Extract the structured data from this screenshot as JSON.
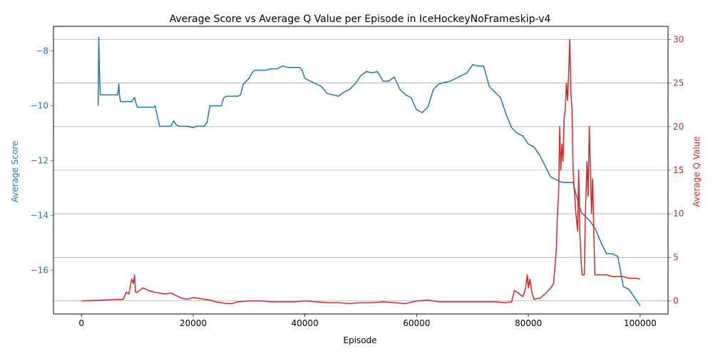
{
  "chart_data": {
    "type": "line",
    "title": "Average Score vs Average Q Value per Episode in IceHockeyNoFrameskip-v4",
    "xlabel": "Episode",
    "ylabel_left": "Average Score",
    "ylabel_right": "Average Q Value",
    "xlim": [
      -5000,
      105000
    ],
    "ylim_left": [
      -17.6,
      -7.1
    ],
    "ylim_right": [
      -1.5,
      31.5
    ],
    "x_ticks": [
      0,
      20000,
      40000,
      60000,
      80000,
      100000
    ],
    "x_tick_labels": [
      "0",
      "20000",
      "40000",
      "60000",
      "80000",
      "100000"
    ],
    "left_ticks": [
      -16,
      -14,
      -12,
      -10,
      -8
    ],
    "left_tick_labels": [
      "−16",
      "−14",
      "−12",
      "−10",
      "−8"
    ],
    "right_ticks": [
      0,
      5,
      10,
      15,
      20,
      25,
      30
    ],
    "right_tick_labels": [
      "0",
      "5",
      "10",
      "15",
      "20",
      "25",
      "30"
    ],
    "grid": "horizontal lines at right-axis ticks",
    "colors": {
      "score": "#1f77b4",
      "q": "#d62728",
      "grid": "#b0b0b0",
      "axis": "#000000"
    },
    "series": [
      {
        "axis": "left",
        "x": [
          3000,
          3100,
          3200,
          3300,
          3400,
          3500,
          3700,
          4000,
          5000,
          6000,
          6500,
          6700,
          6800,
          7000,
          8000,
          9000,
          9500,
          9700,
          10000,
          11000,
          12000,
          13000,
          13200,
          13500,
          14000,
          15000,
          16000,
          16500,
          17000,
          17500,
          18000,
          19000,
          20000,
          20500,
          21000,
          22000,
          22500,
          23000,
          24000,
          25000,
          25500,
          26000,
          27000,
          28000,
          28500,
          29000,
          30000,
          30500,
          31000,
          32000,
          33000,
          34000,
          35000,
          36000,
          37000,
          38000,
          39000,
          39500,
          40000,
          41000,
          42000,
          43000,
          44000,
          45000,
          46000,
          47000,
          48000,
          49000,
          50000,
          51000,
          52000,
          53000,
          54000,
          55000,
          56000,
          57000,
          58000,
          59000,
          60000,
          61000,
          62000,
          63000,
          64000,
          65000,
          66000,
          67000,
          68000,
          69000,
          70000,
          71000,
          72000,
          73000,
          74000,
          75000,
          76000,
          77000,
          78000,
          79000,
          80000,
          81000,
          82000,
          83000,
          84000,
          85000,
          86000,
          87000,
          88000,
          89000,
          89500,
          90000,
          91000,
          92000,
          93000,
          94000,
          95000,
          96000,
          97000,
          98000,
          99000,
          100000
        ],
        "y": [
          -10.0,
          -7.5,
          -8.5,
          -9.2,
          -9.6,
          -9.6,
          -9.6,
          -9.6,
          -9.6,
          -9.6,
          -9.6,
          -9.2,
          -9.6,
          -9.85,
          -9.85,
          -9.85,
          -9.7,
          -9.85,
          -10.05,
          -10.05,
          -10.05,
          -10.05,
          -10.0,
          -10.3,
          -10.75,
          -10.75,
          -10.75,
          -10.55,
          -10.7,
          -10.75,
          -10.75,
          -10.75,
          -10.8,
          -10.75,
          -10.75,
          -10.75,
          -10.6,
          -10.0,
          -10.0,
          -10.0,
          -9.7,
          -9.65,
          -9.65,
          -9.65,
          -9.6,
          -9.2,
          -9.0,
          -8.8,
          -8.7,
          -8.7,
          -8.7,
          -8.65,
          -8.65,
          -8.55,
          -8.6,
          -8.6,
          -8.6,
          -8.7,
          -9.0,
          -9.1,
          -9.2,
          -9.3,
          -9.55,
          -9.6,
          -9.65,
          -9.5,
          -9.4,
          -9.2,
          -8.9,
          -8.75,
          -8.8,
          -8.75,
          -9.1,
          -9.1,
          -8.95,
          -9.4,
          -9.6,
          -9.7,
          -10.15,
          -10.25,
          -10.05,
          -9.4,
          -9.2,
          -9.15,
          -9.1,
          -9.0,
          -8.9,
          -8.8,
          -8.5,
          -8.55,
          -8.55,
          -9.3,
          -9.5,
          -9.7,
          -10.3,
          -10.8,
          -11.0,
          -11.1,
          -11.4,
          -11.5,
          -11.8,
          -12.2,
          -12.6,
          -12.7,
          -12.8,
          -12.8,
          -12.8,
          -13.6,
          -13.9,
          -14.0,
          -14.2,
          -14.5,
          -15.0,
          -15.4,
          -15.4,
          -15.5,
          -16.6,
          -16.7,
          -17.0,
          -17.3
        ]
      },
      {
        "axis": "right",
        "x": [
          0,
          2000,
          4000,
          6000,
          7500,
          8000,
          8500,
          9000,
          9300,
          9500,
          9700,
          10000,
          11000,
          12000,
          13000,
          14000,
          15000,
          16000,
          17000,
          18000,
          19000,
          20000,
          21000,
          22000,
          23000,
          24000,
          25000,
          26000,
          27000,
          28000,
          30000,
          32000,
          34000,
          36000,
          38000,
          40000,
          42000,
          44000,
          46000,
          48000,
          50000,
          52000,
          54000,
          56000,
          58000,
          60000,
          62000,
          64000,
          66000,
          68000,
          70000,
          72000,
          74000,
          76000,
          77000,
          77500,
          78000,
          79000,
          79500,
          79800,
          80000,
          80300,
          80600,
          81000,
          82000,
          83000,
          84000,
          84500,
          85000,
          85200,
          85400,
          85600,
          85800,
          86000,
          86200,
          86400,
          86600,
          86800,
          87000,
          87200,
          87400,
          87600,
          87800,
          88000,
          88200,
          88500,
          88800,
          89000,
          89200,
          89400,
          89600,
          89800,
          90000,
          90200,
          90500,
          90700,
          90900,
          91100,
          91300,
          91500,
          91700,
          91900,
          92000,
          92100,
          93000,
          94000,
          95000,
          96000,
          97000,
          98000,
          99000,
          100000
        ],
        "y": [
          0.0,
          0.05,
          0.1,
          0.15,
          0.2,
          1.0,
          0.8,
          2.5,
          2.0,
          3.0,
          1.0,
          1.0,
          1.5,
          1.2,
          1.0,
          0.9,
          0.8,
          0.9,
          0.6,
          0.3,
          0.2,
          0.4,
          0.3,
          0.2,
          0.1,
          -0.1,
          -0.2,
          -0.3,
          -0.3,
          -0.1,
          0.0,
          0.0,
          -0.1,
          -0.1,
          -0.1,
          0.0,
          -0.1,
          -0.2,
          -0.2,
          -0.3,
          -0.2,
          -0.2,
          -0.1,
          -0.2,
          -0.3,
          0.0,
          0.1,
          -0.1,
          -0.1,
          -0.1,
          -0.1,
          -0.1,
          -0.1,
          -0.2,
          -0.1,
          1.2,
          1.0,
          0.5,
          1.5,
          3.0,
          1.5,
          2.5,
          1.0,
          0.2,
          0.3,
          0.8,
          1.5,
          2.0,
          6.0,
          10.0,
          12.0,
          20.0,
          15.0,
          18.0,
          16.0,
          21.0,
          22.0,
          25.0,
          23.0,
          26.0,
          30.0,
          24.0,
          22.0,
          15.0,
          13.0,
          10.0,
          8.0,
          15.0,
          8.0,
          5.0,
          3.0,
          3.0,
          3.0,
          10.0,
          16.0,
          12.0,
          20.0,
          15.0,
          10.0,
          14.0,
          8.0,
          3.0,
          3.0,
          3.0,
          3.0,
          3.0,
          2.8,
          2.8,
          2.8,
          2.6,
          2.6,
          2.5
        ]
      }
    ]
  }
}
